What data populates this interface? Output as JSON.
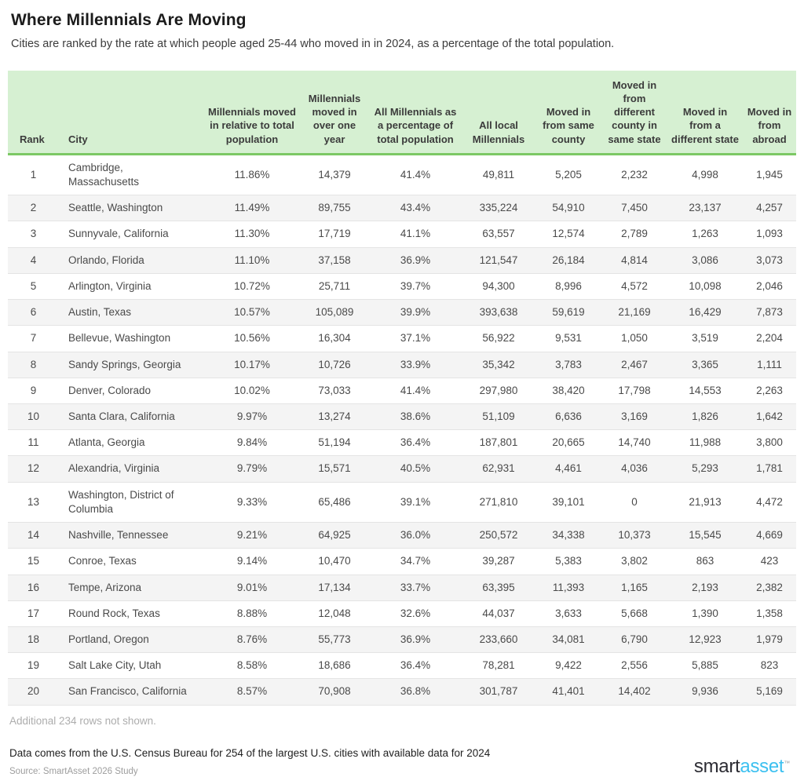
{
  "page": {
    "title": "Where Millennials Are Moving",
    "subtitle": "Cities are ranked by the rate at which people aged 25-44 who moved in in 2024, as a percentage of the total population."
  },
  "chart_data": {
    "type": "table",
    "title": "Where Millennials Are Moving",
    "columns": [
      "Rank",
      "City",
      "Millennials moved in relative to total population",
      "Millennials moved in over one year",
      "All Millennials as a percentage of total population",
      "All local Millennials",
      "Moved in from same county",
      "Moved in from different county in same state",
      "Moved in from a different state",
      "Moved in from abroad"
    ],
    "rows": [
      [
        "1",
        "Cambridge, Massachusetts",
        "11.86%",
        "14,379",
        "41.4%",
        "49,811",
        "5,205",
        "2,232",
        "4,998",
        "1,945"
      ],
      [
        "2",
        "Seattle, Washington",
        "11.49%",
        "89,755",
        "43.4%",
        "335,224",
        "54,910",
        "7,450",
        "23,137",
        "4,257"
      ],
      [
        "3",
        "Sunnyvale, California",
        "11.30%",
        "17,719",
        "41.1%",
        "63,557",
        "12,574",
        "2,789",
        "1,263",
        "1,093"
      ],
      [
        "4",
        "Orlando, Florida",
        "11.10%",
        "37,158",
        "36.9%",
        "121,547",
        "26,184",
        "4,814",
        "3,086",
        "3,073"
      ],
      [
        "5",
        "Arlington, Virginia",
        "10.72%",
        "25,711",
        "39.7%",
        "94,300",
        "8,996",
        "4,572",
        "10,098",
        "2,046"
      ],
      [
        "6",
        "Austin, Texas",
        "10.57%",
        "105,089",
        "39.9%",
        "393,638",
        "59,619",
        "21,169",
        "16,429",
        "7,873"
      ],
      [
        "7",
        "Bellevue, Washington",
        "10.56%",
        "16,304",
        "37.1%",
        "56,922",
        "9,531",
        "1,050",
        "3,519",
        "2,204"
      ],
      [
        "8",
        "Sandy Springs, Georgia",
        "10.17%",
        "10,726",
        "33.9%",
        "35,342",
        "3,783",
        "2,467",
        "3,365",
        "1,111"
      ],
      [
        "9",
        "Denver, Colorado",
        "10.02%",
        "73,033",
        "41.4%",
        "297,980",
        "38,420",
        "17,798",
        "14,553",
        "2,263"
      ],
      [
        "10",
        "Santa Clara, California",
        "9.97%",
        "13,274",
        "38.6%",
        "51,109",
        "6,636",
        "3,169",
        "1,826",
        "1,642"
      ],
      [
        "11",
        "Atlanta, Georgia",
        "9.84%",
        "51,194",
        "36.4%",
        "187,801",
        "20,665",
        "14,740",
        "11,988",
        "3,800"
      ],
      [
        "12",
        "Alexandria, Virginia",
        "9.79%",
        "15,571",
        "40.5%",
        "62,931",
        "4,461",
        "4,036",
        "5,293",
        "1,781"
      ],
      [
        "13",
        "Washington, District of Columbia",
        "9.33%",
        "65,486",
        "39.1%",
        "271,810",
        "39,101",
        "0",
        "21,913",
        "4,472"
      ],
      [
        "14",
        "Nashville, Tennessee",
        "9.21%",
        "64,925",
        "36.0%",
        "250,572",
        "34,338",
        "10,373",
        "15,545",
        "4,669"
      ],
      [
        "15",
        "Conroe, Texas",
        "9.14%",
        "10,470",
        "34.7%",
        "39,287",
        "5,383",
        "3,802",
        "863",
        "423"
      ],
      [
        "16",
        "Tempe, Arizona",
        "9.01%",
        "17,134",
        "33.7%",
        "63,395",
        "11,393",
        "1,165",
        "2,193",
        "2,382"
      ],
      [
        "17",
        "Round Rock, Texas",
        "8.88%",
        "12,048",
        "32.6%",
        "44,037",
        "3,633",
        "5,668",
        "1,390",
        "1,358"
      ],
      [
        "18",
        "Portland, Oregon",
        "8.76%",
        "55,773",
        "36.9%",
        "233,660",
        "34,081",
        "6,790",
        "12,923",
        "1,979"
      ],
      [
        "19",
        "Salt Lake City, Utah",
        "8.58%",
        "18,686",
        "36.4%",
        "78,281",
        "9,422",
        "2,556",
        "5,885",
        "823"
      ],
      [
        "20",
        "San Francisco, California",
        "8.57%",
        "70,908",
        "36.8%",
        "301,787",
        "41,401",
        "14,402",
        "9,936",
        "5,169"
      ]
    ],
    "layout": {
      "header_background": "#d6f0d2",
      "header_border_color": "#7cc864",
      "stripe_color": "#f4f4f4",
      "grid": "horizontal-only"
    }
  },
  "footer": {
    "more_rows_note": "Additional 234 rows not shown.",
    "data_note": "Data comes from the U.S. Census Bureau for 254 of the largest U.S. cities with available data for 2024",
    "source": "Source: SmartAsset 2026 Study"
  },
  "logo": {
    "smart": "smart",
    "asset": "asset",
    "tm": "™"
  },
  "colors": {
    "header_bg": "#d6f0d2",
    "header_border": "#7cc864",
    "stripe": "#f4f4f4",
    "logo_blue": "#3cc0f0",
    "logo_dark": "#2c2c33"
  }
}
